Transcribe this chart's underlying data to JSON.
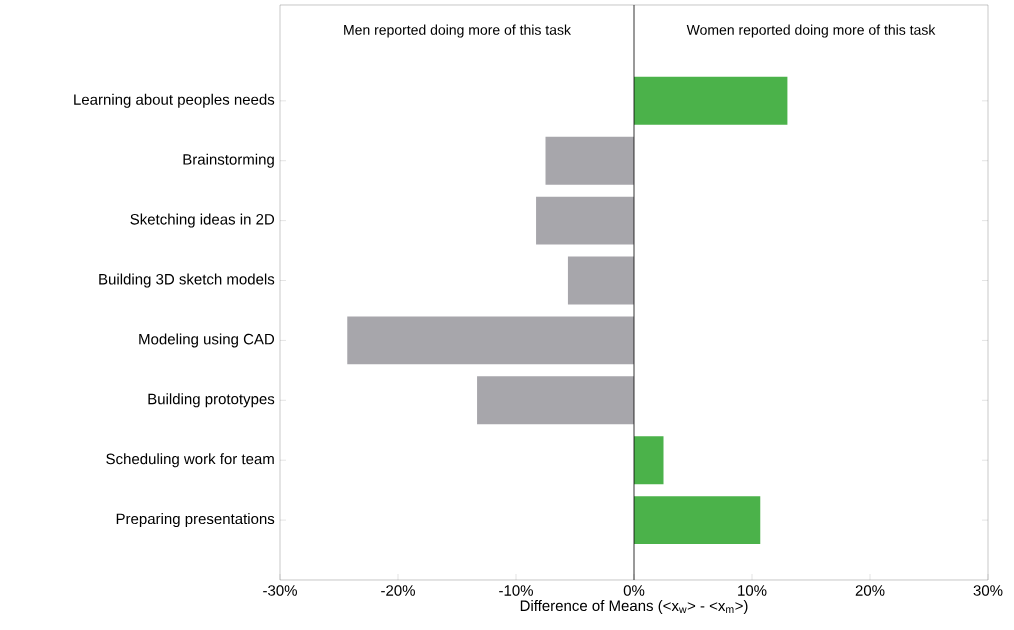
{
  "chart_data": {
    "type": "bar",
    "orientation": "horizontal",
    "xlabel": "Difference of Means (<x$_{w}$> - <x$_{m}$>)",
    "categories": [
      "Learning about peoples needs",
      "Brainstorming",
      "Sketching ideas in 2D",
      "Building 3D sketch models",
      "Modeling using CAD",
      "Building prototypes",
      "Scheduling work for team",
      "Preparing presentations"
    ],
    "values": [
      13.0,
      -7.5,
      -8.3,
      -5.6,
      -24.3,
      -13.3,
      2.5,
      10.7
    ],
    "colors": [
      "#4bb24a",
      "#a7a6ab",
      "#a7a6ab",
      "#a7a6ab",
      "#a7a6ab",
      "#a7a6ab",
      "#4bb24a",
      "#4bb24a"
    ],
    "xlim": [
      -30,
      30
    ],
    "xticks": [
      {
        "value": -30,
        "label": "-30%"
      },
      {
        "value": -20,
        "label": "-20%"
      },
      {
        "value": -10,
        "label": "-10%"
      },
      {
        "value": 0,
        "label": "0%"
      },
      {
        "value": 10,
        "label": "10%"
      },
      {
        "value": 20,
        "label": "20%"
      },
      {
        "value": 30,
        "label": "30%"
      }
    ],
    "ref_lines": [
      {
        "axis": "x",
        "value": 0,
        "color": "#000000"
      }
    ],
    "annotations": [
      "Men reported doing more of this task",
      "Women reported doing more of this task"
    ],
    "grid": false
  }
}
